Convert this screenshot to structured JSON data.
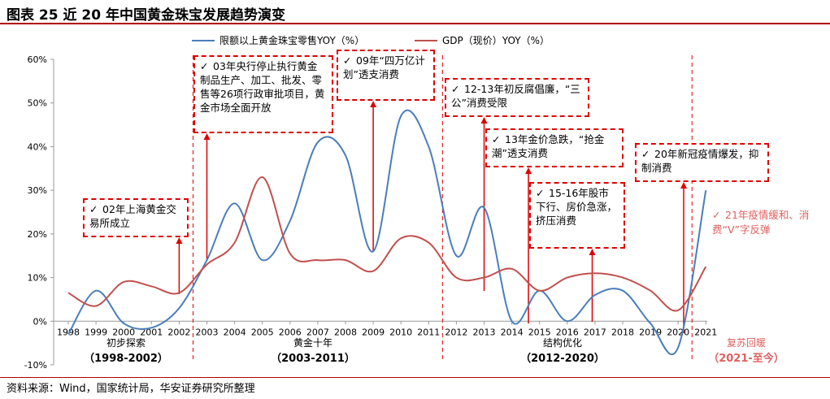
{
  "title": "图表 25 近 20 年中国黄金珠宝发展趋势演变",
  "source": "资料来源：Wind，国家统计局，华安证券研究所整理",
  "colors": {
    "retail": "#4a7ebb",
    "gdp": "#c0504d",
    "annotation": "#e00000",
    "phase_red": "#e06060"
  },
  "chart_data": {
    "type": "line",
    "x": [
      "1998",
      "1999",
      "2000",
      "2001",
      "2002",
      "2003",
      "2004",
      "2005",
      "2006",
      "2007",
      "2008",
      "2009",
      "2010",
      "2011",
      "2012",
      "2013",
      "2014",
      "2015",
      "2016",
      "2017",
      "2018",
      "2019",
      "2020",
      "2021"
    ],
    "ylim": [
      -0.1,
      0.6
    ],
    "yticks": [
      "-10%",
      "0%",
      "10%",
      "20%",
      "30%",
      "40%",
      "50%",
      "60%"
    ],
    "grid": false,
    "legend": "top",
    "series": [
      {
        "name": "限额以上黄金珠宝零售YOY（%）",
        "values": [
          -0.03,
          0.07,
          -0.005,
          -0.015,
          0.03,
          0.14,
          0.27,
          0.14,
          0.23,
          0.41,
          0.38,
          0.16,
          0.47,
          0.4,
          0.15,
          0.26,
          0.0,
          0.07,
          0.0,
          0.06,
          0.07,
          -0.005,
          -0.06,
          0.3
        ]
      },
      {
        "name": "GDP（现价）YOY（%）",
        "values": [
          0.065,
          0.035,
          0.09,
          0.08,
          0.065,
          0.13,
          0.18,
          0.33,
          0.155,
          0.14,
          0.14,
          0.115,
          0.19,
          0.18,
          0.1,
          0.1,
          0.12,
          0.07,
          0.1,
          0.11,
          0.1,
          0.07,
          0.025,
          0.125
        ]
      }
    ]
  },
  "phases": [
    {
      "name": "初步探索",
      "range": "（1998-2002）"
    },
    {
      "name": "黄金十年",
      "range": "（2003-2011）"
    },
    {
      "name": "结构优化",
      "range": "（2012-2020）"
    },
    {
      "name": "复苏回暖",
      "range": "（2021-至今）"
    }
  ],
  "annotations": [
    {
      "check": "✓",
      "text": "02年上海黄金交易所成立"
    },
    {
      "check": "✓",
      "text": "03年央行停止执行黄金制品生产、加工、批发、零售等26项行政审批项目，黄金市场全面开放"
    },
    {
      "check": "✓",
      "text": "09年“四万亿计划”透支消费"
    },
    {
      "check": "✓",
      "text": "12-13年初反腐倡廉，“三公”消费受限"
    },
    {
      "check": "✓",
      "text": "13年金价急跌，“抢金潮”透支消费"
    },
    {
      "check": "✓",
      "text": "15-16年股市下行、房价急涨，挤压消费"
    },
    {
      "check": "✓",
      "text": "20年新冠疫情爆发，抑制消费"
    }
  ],
  "note21": {
    "check": "✓",
    "text": "21年疫情缓和、消费“V”字反弹"
  }
}
